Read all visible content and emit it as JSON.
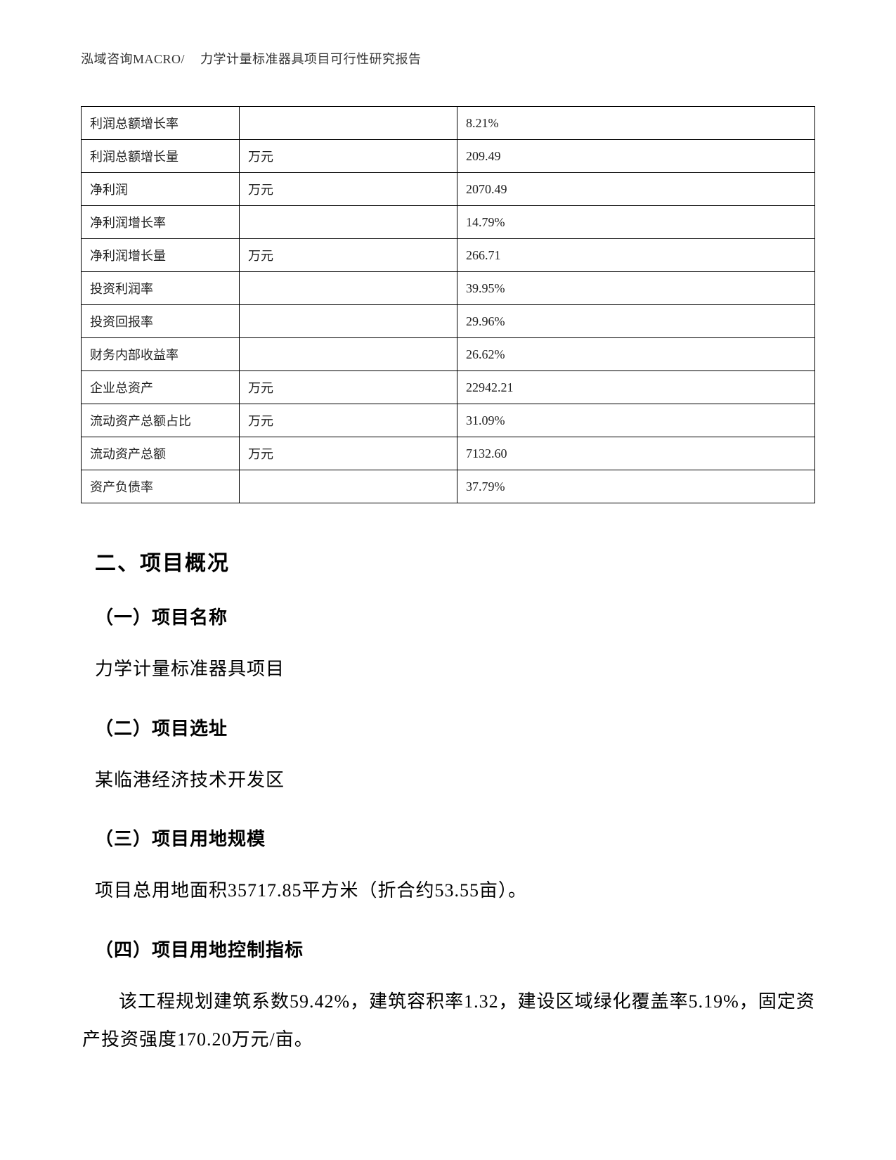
{
  "header": {
    "left": "泓域咨询MACRO/",
    "right": "力学计量标准器具项目可行性研究报告"
  },
  "table": {
    "rows": [
      {
        "c1": "利润总额增长率",
        "c2": "",
        "c3": "8.21%"
      },
      {
        "c1": "利润总额增长量",
        "c2": "万元",
        "c3": "209.49"
      },
      {
        "c1": "净利润",
        "c2": "万元",
        "c3": "2070.49"
      },
      {
        "c1": "净利润增长率",
        "c2": "",
        "c3": "14.79%"
      },
      {
        "c1": "净利润增长量",
        "c2": "万元",
        "c3": "266.71"
      },
      {
        "c1": "投资利润率",
        "c2": "",
        "c3": "39.95%"
      },
      {
        "c1": "投资回报率",
        "c2": "",
        "c3": "29.96%"
      },
      {
        "c1": "财务内部收益率",
        "c2": "",
        "c3": "26.62%"
      },
      {
        "c1": "企业总资产",
        "c2": "万元",
        "c3": "22942.21"
      },
      {
        "c1": "流动资产总额占比",
        "c2": "万元",
        "c3": "31.09%"
      },
      {
        "c1": "流动资产总额",
        "c2": "万元",
        "c3": "7132.60"
      },
      {
        "c1": "资产负债率",
        "c2": "",
        "c3": "37.79%"
      }
    ]
  },
  "sections": {
    "main_heading": "二、项目概况",
    "s1_title": "（一）项目名称",
    "s1_body": "力学计量标准器具项目",
    "s2_title": "（二）项目选址",
    "s2_body": "某临港经济技术开发区",
    "s3_title": "（三）项目用地规模",
    "s3_body": "项目总用地面积35717.85平方米（折合约53.55亩）。",
    "s4_title": "（四）项目用地控制指标",
    "s4_body": "该工程规划建筑系数59.42%，建筑容积率1.32，建设区域绿化覆盖率5.19%，固定资产投资强度170.20万元/亩。"
  }
}
